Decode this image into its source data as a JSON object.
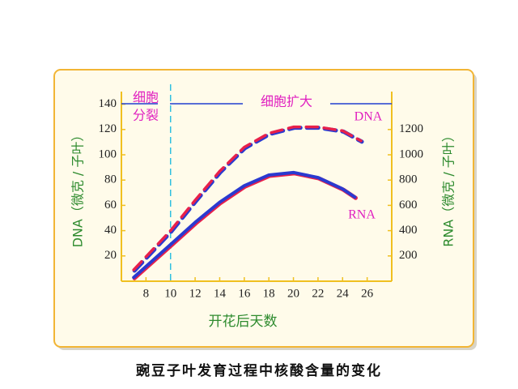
{
  "chart_data": {
    "type": "line",
    "title": "豌豆子叶发育过程中核酸含量的变化",
    "x_label": "开花后天数",
    "y_label": "DNA（微克 / 子叶）",
    "y2_label": "RNA（微克 / 子叶）",
    "phase_labels": [
      "细胞",
      "分裂",
      "细胞扩大"
    ],
    "phase_boundary": 10,
    "xlim": [
      6,
      28
    ],
    "xticks": [
      8,
      10,
      12,
      14,
      16,
      18,
      20,
      22,
      24,
      26
    ],
    "ylim": [
      0,
      150
    ],
    "yticks": [
      20,
      40,
      60,
      80,
      100,
      120,
      140
    ],
    "y2lim": [
      0,
      1500
    ],
    "y2ticks": [
      200,
      400,
      600,
      800,
      1000,
      1200
    ],
    "series": [
      {
        "name": "DNA",
        "color": "#e8204a",
        "dashed": true,
        "x": [
          7,
          10,
          12,
          14,
          16,
          18,
          20,
          22,
          24,
          25.5
        ],
        "values": [
          9,
          40,
          64,
          87,
          106,
          117,
          122,
          122,
          119,
          111
        ]
      },
      {
        "name": "RNA",
        "color": "#2a3ad0",
        "axis": "y2",
        "dashed": false,
        "x": [
          7,
          10,
          12,
          14,
          16,
          18,
          20,
          22,
          24,
          25
        ],
        "values": [
          30,
          290,
          465,
          625,
          755,
          840,
          860,
          820,
          730,
          665
        ]
      }
    ]
  }
}
